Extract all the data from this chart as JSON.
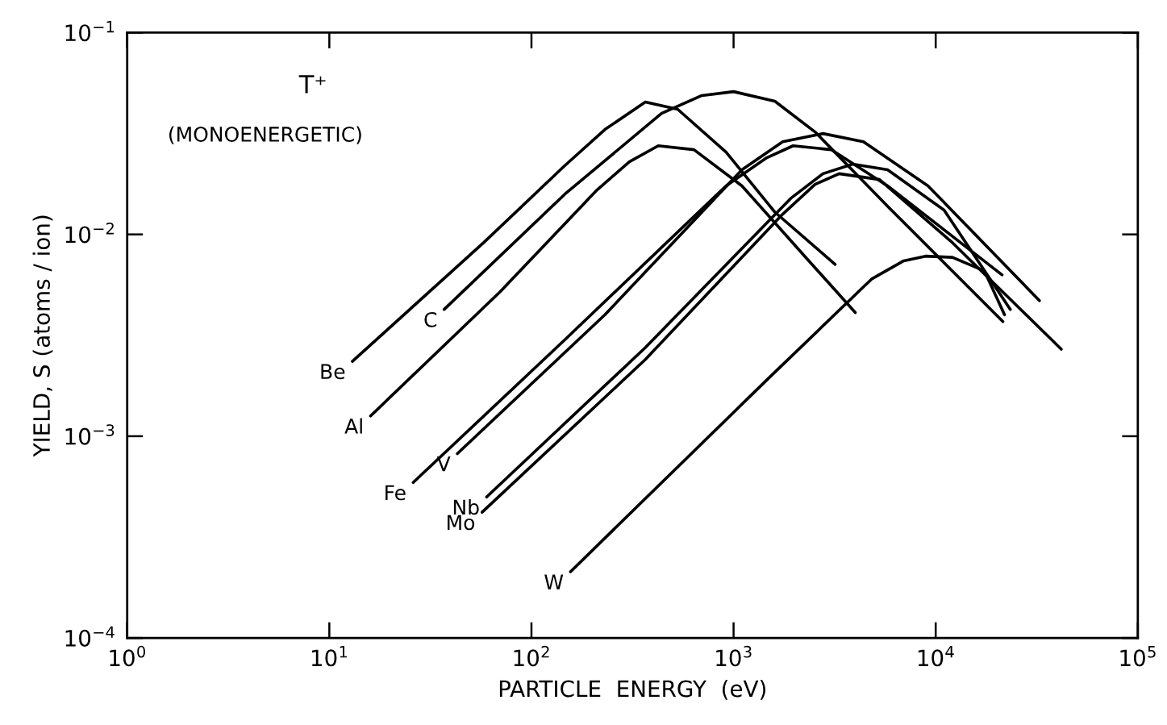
{
  "chart_data": {
    "type": "line",
    "xlabel": "PARTICLE  ENERGY  (eV)",
    "ylabel": "YIELD, S (atoms / ion)",
    "annotations": [
      "T⁺",
      "(MONOENERGETIC)"
    ],
    "log": "xy",
    "grid": false,
    "legend": false,
    "marker": "none",
    "line_style": "solid",
    "xlim": [
      1,
      100000
    ],
    "ylim": [
      0.0001,
      0.1
    ],
    "xticks": [
      {
        "value": 1,
        "label": "10$^{0}$"
      },
      {
        "value": 10,
        "label": "10$^{1}$"
      },
      {
        "value": 100,
        "label": "10$^{2}$"
      },
      {
        "value": 1000,
        "label": "10$^{3}$"
      },
      {
        "value": 10000,
        "label": "10$^{4}$"
      },
      {
        "value": 100000,
        "label": "10$^{5}$"
      }
    ],
    "yticks": [
      {
        "value": 0.0001,
        "label": "10$^{−4}$"
      },
      {
        "value": 0.001,
        "label": "10$^{−3}$"
      },
      {
        "value": 0.01,
        "label": "10$^{−2}$"
      },
      {
        "value": 0.1,
        "label": "10$^{−1}$"
      }
    ],
    "series": [
      {
        "name": "Be",
        "color": "#000000",
        "x": [
          13,
          58,
          146,
          231,
          366,
          529,
          918,
          1600,
          3180
        ],
        "values": [
          0.00235,
          0.0091,
          0.0219,
          0.0331,
          0.0453,
          0.0417,
          0.0256,
          0.0129,
          0.0071
        ]
      },
      {
        "name": "Al",
        "color": "#000000",
        "x": [
          16,
          70,
          211,
          305,
          424,
          637,
          1100,
          2300,
          4000
        ],
        "values": [
          0.00126,
          0.0052,
          0.0166,
          0.0229,
          0.0275,
          0.0263,
          0.0174,
          0.0076,
          0.0041
        ]
      },
      {
        "name": "C",
        "color": "#000000",
        "x": [
          37,
          146,
          440,
          697,
          1000,
          1600,
          2530,
          5780,
          21500
        ],
        "values": [
          0.00425,
          0.0158,
          0.0398,
          0.0488,
          0.051,
          0.0457,
          0.0322,
          0.0138,
          0.0037
        ]
      },
      {
        "name": "Fe",
        "color": "#000000",
        "x": [
          26,
          146,
          918,
          1460,
          1970,
          3040,
          5780,
          21300
        ],
        "values": [
          0.00059,
          0.003,
          0.0174,
          0.024,
          0.0275,
          0.0263,
          0.0174,
          0.0063
        ]
      },
      {
        "name": "V",
        "color": "#000000",
        "x": [
          43,
          231,
          1100,
          1750,
          2770,
          4390,
          9160,
          32600
        ],
        "values": [
          0.00082,
          0.004,
          0.0209,
          0.0288,
          0.0316,
          0.0288,
          0.0174,
          0.0047
        ]
      },
      {
        "name": "Nb",
        "color": "#000000",
        "x": [
          60,
          366,
          1920,
          2770,
          3890,
          5780,
          11000,
          23400
        ],
        "values": [
          0.0005,
          0.00275,
          0.0151,
          0.02,
          0.0223,
          0.0209,
          0.0132,
          0.00425
        ]
      },
      {
        "name": "Mo",
        "color": "#000000",
        "x": [
          57,
          366,
          1750,
          2530,
          3330,
          5270,
          12100,
          41800
        ],
        "values": [
          0.00042,
          0.0024,
          0.0126,
          0.0177,
          0.02,
          0.0187,
          0.0091,
          0.0027
        ]
      },
      {
        "name": "W",
        "color": "#000000",
        "x": [
          156,
          1460,
          4810,
          6950,
          8900,
          12100,
          17400,
          21900
        ],
        "values": [
          0.000213,
          0.0019,
          0.006,
          0.0074,
          0.0078,
          0.0077,
          0.0066,
          0.004
        ]
      }
    ]
  }
}
